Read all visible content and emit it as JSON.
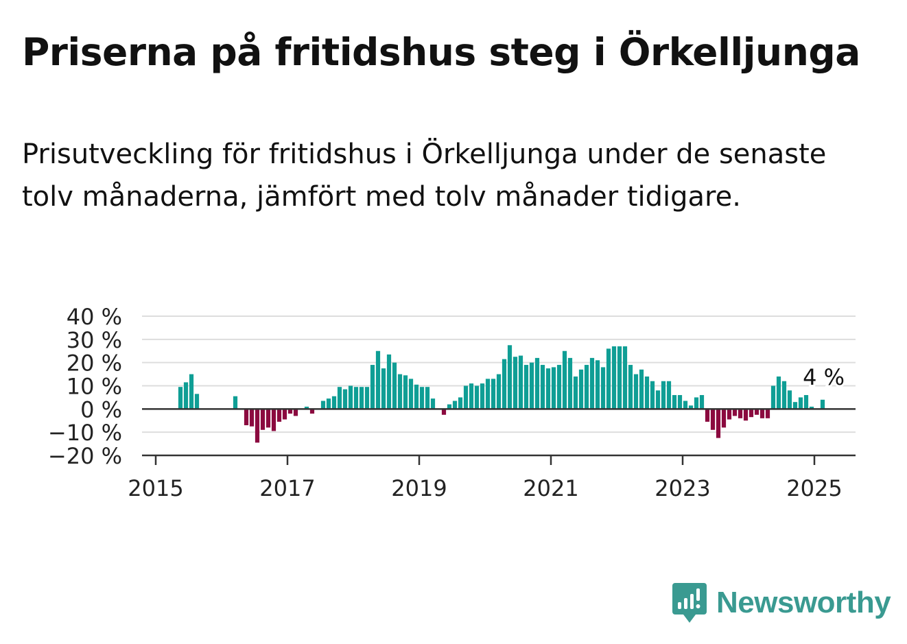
{
  "title": "Priserna på fritidshus steg i Örkelljunga",
  "subtitle": "Prisutveckling för fritidshus i Örkelljunga under de senaste tolv månaderna, jämfört med tolv månader tidigare.",
  "brand": {
    "name": "Newsworthy",
    "color": "#3a9a91"
  },
  "colors": {
    "positive": "#0f9e95",
    "negative": "#8b0a3f",
    "grid": "#dddddd",
    "axis": "#333333"
  },
  "chart_data": {
    "type": "bar",
    "title": "Priserna på fritidshus steg i Örkelljunga",
    "subtitle": "Prisutveckling för fritidshus i Örkelljunga under de senaste tolv månaderna, jämfört med tolv månader tidigare.",
    "unit": "%",
    "ylim": [
      -20,
      40
    ],
    "y_ticks": [
      40,
      30,
      20,
      10,
      0,
      -10,
      -20
    ],
    "y_tick_labels": [
      "40 %",
      "30 %",
      "20 %",
      "10 %",
      "0 %",
      "−10 %",
      "−20 %"
    ],
    "x_tick_labels": [
      "2015",
      "2017",
      "2019",
      "2021",
      "2023",
      "2025"
    ],
    "grid": true,
    "annotation": {
      "text": "4 %",
      "x": "2025-02",
      "value": 4
    },
    "series": [
      {
        "values": [
          [
            "2015-05",
            9.5
          ],
          [
            "2015-06",
            11.5
          ],
          [
            "2015-07",
            15
          ],
          [
            "2015-08",
            6.5
          ],
          [
            "2016-03",
            5.5
          ],
          [
            "2016-05",
            -7
          ],
          [
            "2016-06",
            -7.5
          ],
          [
            "2016-07",
            -14.5
          ],
          [
            "2016-08",
            -9
          ],
          [
            "2016-09",
            -8
          ],
          [
            "2016-10",
            -9.5
          ],
          [
            "2016-11",
            -5.5
          ],
          [
            "2016-12",
            -4.5
          ],
          [
            "2017-01",
            -2
          ],
          [
            "2017-02",
            -3
          ],
          [
            "2017-04",
            1
          ],
          [
            "2017-05",
            -2
          ],
          [
            "2017-07",
            3.5
          ],
          [
            "2017-08",
            4.5
          ],
          [
            "2017-09",
            5.5
          ],
          [
            "2017-10",
            9.5
          ],
          [
            "2017-11",
            8.5
          ],
          [
            "2017-12",
            10
          ],
          [
            "2018-01",
            9.5
          ],
          [
            "2018-02",
            9.5
          ],
          [
            "2018-03",
            9.5
          ],
          [
            "2018-04",
            19
          ],
          [
            "2018-05",
            25
          ],
          [
            "2018-06",
            17.5
          ],
          [
            "2018-07",
            23.5
          ],
          [
            "2018-08",
            20
          ],
          [
            "2018-09",
            15
          ],
          [
            "2018-10",
            14.5
          ],
          [
            "2018-11",
            13
          ],
          [
            "2018-12",
            10.5
          ],
          [
            "2019-01",
            9.5
          ],
          [
            "2019-02",
            9.5
          ],
          [
            "2019-03",
            4.5
          ],
          [
            "2019-05",
            -2.5
          ],
          [
            "2019-06",
            2
          ],
          [
            "2019-07",
            3.5
          ],
          [
            "2019-08",
            5
          ],
          [
            "2019-09",
            10
          ],
          [
            "2019-10",
            11
          ],
          [
            "2019-11",
            10
          ],
          [
            "2019-12",
            11
          ],
          [
            "2020-01",
            13
          ],
          [
            "2020-02",
            13
          ],
          [
            "2020-03",
            15
          ],
          [
            "2020-04",
            21.5
          ],
          [
            "2020-05",
            27.5
          ],
          [
            "2020-06",
            22.5
          ],
          [
            "2020-07",
            23
          ],
          [
            "2020-08",
            19
          ],
          [
            "2020-09",
            20
          ],
          [
            "2020-10",
            22
          ],
          [
            "2020-11",
            19
          ],
          [
            "2020-12",
            17.5
          ],
          [
            "2021-01",
            18
          ],
          [
            "2021-02",
            19
          ],
          [
            "2021-03",
            25
          ],
          [
            "2021-04",
            22
          ],
          [
            "2021-05",
            14
          ],
          [
            "2021-06",
            17
          ],
          [
            "2021-07",
            19
          ],
          [
            "2021-08",
            22
          ],
          [
            "2021-09",
            21
          ],
          [
            "2021-10",
            18
          ],
          [
            "2021-11",
            26
          ],
          [
            "2021-12",
            27
          ],
          [
            "2022-01",
            27
          ],
          [
            "2022-02",
            27
          ],
          [
            "2022-03",
            19
          ],
          [
            "2022-04",
            15
          ],
          [
            "2022-05",
            17
          ],
          [
            "2022-06",
            14
          ],
          [
            "2022-07",
            12
          ],
          [
            "2022-08",
            8
          ],
          [
            "2022-09",
            12
          ],
          [
            "2022-10",
            12
          ],
          [
            "2022-11",
            6
          ],
          [
            "2022-12",
            6
          ],
          [
            "2023-01",
            3.5
          ],
          [
            "2023-02",
            1.5
          ],
          [
            "2023-03",
            5
          ],
          [
            "2023-04",
            6
          ],
          [
            "2023-05",
            -5.5
          ],
          [
            "2023-06",
            -9
          ],
          [
            "2023-07",
            -12.5
          ],
          [
            "2023-08",
            -8
          ],
          [
            "2023-09",
            -4.5
          ],
          [
            "2023-10",
            -3
          ],
          [
            "2023-11",
            -4
          ],
          [
            "2023-12",
            -5
          ],
          [
            "2024-01",
            -3.5
          ],
          [
            "2024-02",
            -2.5
          ],
          [
            "2024-03",
            -4
          ],
          [
            "2024-04",
            -4
          ],
          [
            "2024-05",
            10
          ],
          [
            "2024-06",
            14
          ],
          [
            "2024-07",
            12
          ],
          [
            "2024-08",
            8
          ],
          [
            "2024-09",
            3
          ],
          [
            "2024-10",
            5
          ],
          [
            "2024-11",
            6
          ],
          [
            "2024-12",
            1
          ],
          [
            "2025-02",
            4
          ]
        ]
      }
    ]
  }
}
